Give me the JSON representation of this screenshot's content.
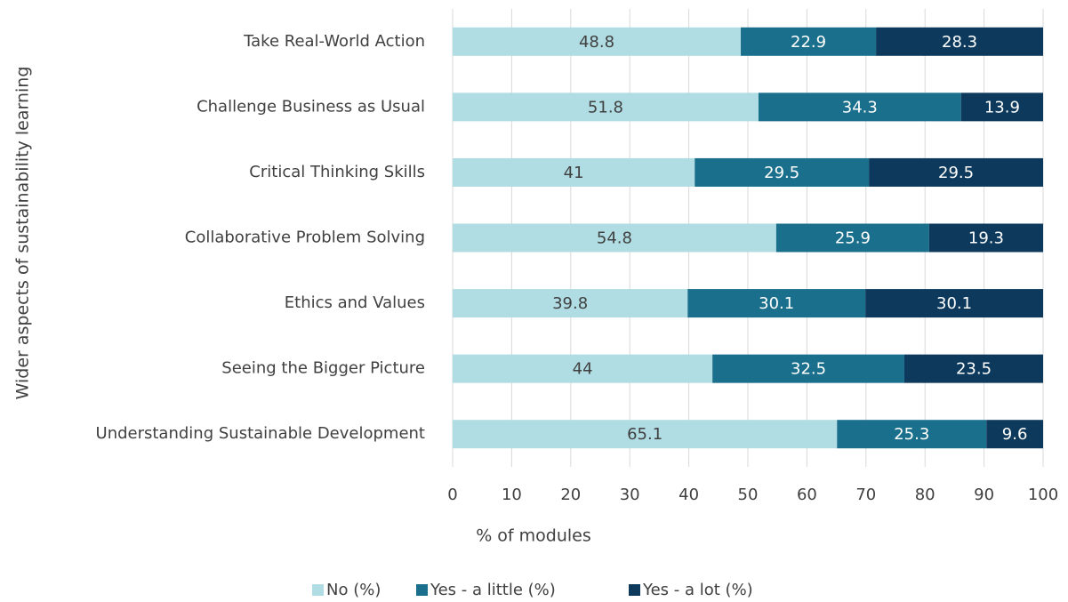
{
  "chart_data": {
    "type": "stacked_barh",
    "categories": [
      "Take Real-World Action",
      "Challenge Business as Usual",
      "Critical Thinking Skills",
      "Collaborative Problem Solving",
      "Ethics and Values",
      "Seeing the Bigger Picture",
      "Understanding Sustainable Development"
    ],
    "series": [
      {
        "name": "No (%)",
        "color": "#b0dde3",
        "values": [
          48.8,
          51.8,
          41,
          54.8,
          39.8,
          44,
          65.1
        ]
      },
      {
        "name": "Yes - a little (%)",
        "color": "#1a6f8c",
        "values": [
          22.9,
          34.3,
          29.5,
          25.9,
          30.1,
          32.5,
          25.3
        ]
      },
      {
        "name": "Yes - a lot (%)",
        "color": "#0d3a5c",
        "values": [
          28.3,
          13.9,
          29.5,
          19.3,
          30.1,
          23.5,
          9.6
        ]
      }
    ],
    "xlabel": "% of modules",
    "ylabel": "Wider aspects of sustainability learning",
    "xlim": [
      0,
      100
    ],
    "xticks": [
      0,
      10,
      20,
      30,
      40,
      50,
      60,
      70,
      80,
      90,
      100
    ],
    "grid": true,
    "legend": "bottom"
  }
}
